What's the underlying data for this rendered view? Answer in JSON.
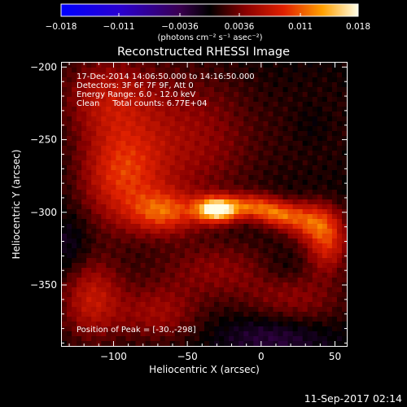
{
  "chart_data": {
    "type": "heatmap",
    "title": "Reconstructed RHESSI Image",
    "xlabel": "Heliocentric X (arcsec)",
    "ylabel": "Heliocentric Y (arcsec)",
    "xlim": [
      -135,
      58
    ],
    "ylim": [
      -392,
      -197
    ],
    "xticks": [
      -100,
      -50,
      0,
      50
    ],
    "xtick_labels": [
      "−100",
      "−50",
      "0",
      "50"
    ],
    "yticks": [
      -200,
      -250,
      -300,
      -350
    ],
    "ytick_labels": [
      "−200",
      "−250",
      "−300",
      "−350"
    ],
    "colorbar": {
      "range": [
        -0.018,
        0.018
      ],
      "ticks": [
        -0.018,
        -0.011,
        -0.0036,
        0.0036,
        0.011,
        0.018
      ],
      "tick_labels": [
        "−0.018",
        "−0.011",
        "−0.0036",
        "0.0036",
        "0.011",
        "0.018"
      ],
      "units_label": "(photons cm⁻² s⁻¹ asec⁻²)"
    },
    "annotations": [
      "17-Dec-2014 14:06:50.000 to 14:16:50.000",
      "Detectors: 3F 6F 7F 9F, Att 0",
      "Energy Range: 6.0 - 12.0 keV",
      "Clean     Total counts: 6.77E+04"
    ],
    "peak_label": "Position of Peak = [-30.,-298]",
    "peak": {
      "x": -30,
      "y": -298,
      "value": 0.018
    },
    "sources": [
      {
        "x": -30,
        "y": -298,
        "sx": 10,
        "sy": 6,
        "amp": 0.0175
      },
      {
        "x": -5,
        "y": -296,
        "sx": 12,
        "sy": 6,
        "amp": 0.009
      },
      {
        "x": 12,
        "y": -302,
        "sx": 10,
        "sy": 6,
        "amp": 0.008
      },
      {
        "x": 32,
        "y": -306,
        "sx": 12,
        "sy": 9,
        "amp": 0.0085
      },
      {
        "x": 45,
        "y": -320,
        "sx": 10,
        "sy": 14,
        "amp": 0.0085
      },
      {
        "x": -65,
        "y": -300,
        "sx": 16,
        "sy": 10,
        "amp": 0.0085
      },
      {
        "x": -95,
        "y": -275,
        "sx": 20,
        "sy": 25,
        "amp": 0.008
      },
      {
        "x": -105,
        "y": -220,
        "sx": 22,
        "sy": 20,
        "amp": 0.0055
      },
      {
        "x": -115,
        "y": -360,
        "sx": 15,
        "sy": 20,
        "amp": 0.007
      },
      {
        "x": -70,
        "y": -370,
        "sx": 20,
        "sy": 14,
        "amp": 0.005
      },
      {
        "x": -50,
        "y": -250,
        "sx": 35,
        "sy": 35,
        "amp": 0.005
      },
      {
        "x": -30,
        "y": -340,
        "sx": 30,
        "sy": 15,
        "amp": 0.004
      },
      {
        "x": 25,
        "y": -360,
        "sx": 25,
        "sy": 15,
        "amp": 0.004
      },
      {
        "x": 40,
        "y": -240,
        "sx": 20,
        "sy": 25,
        "amp": 0.0015
      },
      {
        "x": 10,
        "y": -385,
        "sx": 25,
        "sy": 10,
        "amp": -0.003
      },
      {
        "x": 35,
        "y": -240,
        "sx": 10,
        "sy": 12,
        "amp": -0.0015
      },
      {
        "x": -130,
        "y": -325,
        "sx": 10,
        "sy": 15,
        "amp": -0.002
      },
      {
        "x": 15,
        "y": -340,
        "sx": 12,
        "sy": 8,
        "amp": -0.0015
      }
    ],
    "grid": false
  },
  "footer": {
    "timestamp": "11-Sep-2017 02:14"
  }
}
